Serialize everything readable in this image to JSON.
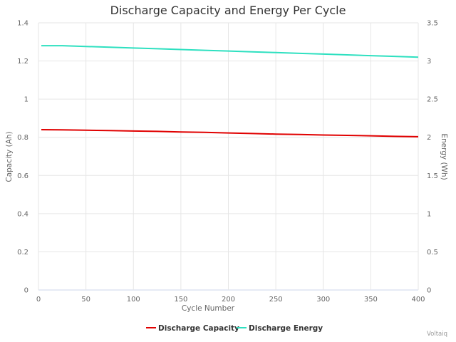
{
  "chart_data": {
    "type": "line",
    "title": "Discharge Capacity and Energy Per Cycle",
    "xlabel": "Cycle Number",
    "ylabel": "Capacity (Ah)",
    "y2label": "Energy (Wh)",
    "xlim": [
      0,
      400
    ],
    "ylim": [
      0,
      1.4
    ],
    "y2lim": [
      0,
      3.5
    ],
    "x_ticks": [
      "0",
      "50",
      "100",
      "150",
      "200",
      "250",
      "300",
      "350",
      "400"
    ],
    "y_ticks": [
      "0",
      "0.2",
      "0.4",
      "0.6",
      "0.8",
      "1",
      "1.2",
      "1.4"
    ],
    "y2_ticks": [
      "0",
      "0.5",
      "1",
      "1.5",
      "2",
      "2.5",
      "3",
      "3.5"
    ],
    "grid": true,
    "legend_position": "bottom",
    "series": [
      {
        "name": "Discharge Capacity",
        "axis": "left",
        "color": "#e00000",
        "x": [
          3,
          25,
          50,
          75,
          100,
          125,
          150,
          175,
          200,
          225,
          250,
          275,
          300,
          325,
          350,
          375,
          400
        ],
        "values": [
          0.84,
          0.839,
          0.837,
          0.835,
          0.833,
          0.831,
          0.828,
          0.826,
          0.823,
          0.82,
          0.817,
          0.815,
          0.812,
          0.81,
          0.808,
          0.805,
          0.803
        ]
      },
      {
        "name": "Discharge Energy",
        "axis": "right",
        "color": "#2ee0c0",
        "x": [
          3,
          25,
          50,
          75,
          100,
          125,
          150,
          175,
          200,
          225,
          250,
          275,
          300,
          325,
          350,
          375,
          400
        ],
        "values": [
          3.2,
          3.2,
          3.19,
          3.18,
          3.17,
          3.16,
          3.15,
          3.14,
          3.13,
          3.12,
          3.11,
          3.1,
          3.09,
          3.08,
          3.07,
          3.06,
          3.05
        ]
      }
    ]
  },
  "credit": "Voltaiq"
}
